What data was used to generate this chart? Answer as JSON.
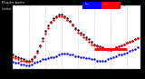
{
  "bg_color": "#000000",
  "plot_bg": "#ffffff",
  "ylim": [
    18,
    72
  ],
  "xlim": [
    0,
    47
  ],
  "ytick_vals": [
    20,
    30,
    40,
    50,
    60,
    70
  ],
  "ytick_labels": [
    "2",
    "3",
    "4",
    "5",
    "6",
    "7"
  ],
  "grid_x": [
    0,
    6,
    12,
    18,
    24,
    30,
    36,
    42
  ],
  "temp_color": "#ff0000",
  "dew_color": "#0000ff",
  "black_color": "#000000",
  "current_color": "#ff0000",
  "marker_size": 1.5,
  "temp_x": [
    0,
    1,
    2,
    3,
    4,
    5,
    6,
    7,
    8,
    9,
    10,
    11,
    12,
    13,
    14,
    15,
    16,
    17,
    18,
    19,
    20,
    21,
    22,
    23,
    24,
    25,
    26,
    27,
    28,
    29,
    30,
    31,
    32,
    33,
    34,
    35,
    36,
    37,
    38,
    39,
    40,
    41,
    42,
    43,
    44,
    45,
    46
  ],
  "temp_y": [
    28,
    27,
    26,
    25,
    25,
    24,
    24,
    25,
    28,
    32,
    37,
    42,
    48,
    53,
    57,
    60,
    62,
    63,
    63,
    62,
    60,
    58,
    55,
    52,
    49,
    47,
    45,
    43,
    41,
    39,
    38,
    37,
    36,
    35,
    35,
    34,
    34,
    35,
    36,
    37,
    38,
    39,
    40,
    41,
    42,
    43,
    44
  ],
  "black_x": [
    0,
    1,
    2,
    3,
    4,
    5,
    6,
    7,
    8,
    9,
    10,
    11,
    12,
    13,
    14,
    15,
    16,
    17,
    18,
    19,
    20,
    21,
    22,
    23,
    24,
    25,
    26,
    27,
    28,
    29,
    30,
    31,
    32,
    33,
    34,
    35,
    36,
    37,
    38,
    39,
    40,
    41,
    42,
    43,
    44,
    45,
    46
  ],
  "black_y": [
    30,
    29,
    28,
    27,
    26,
    25,
    25,
    26,
    29,
    33,
    38,
    44,
    50,
    55,
    58,
    61,
    63,
    64,
    64,
    63,
    61,
    59,
    56,
    53,
    51,
    49,
    47,
    45,
    43,
    41,
    39,
    38,
    37,
    36,
    35,
    35,
    34,
    35,
    36,
    37,
    38,
    39,
    40,
    41,
    42,
    43,
    44
  ],
  "dew_x": [
    0,
    1,
    2,
    3,
    4,
    5,
    6,
    7,
    8,
    9,
    10,
    11,
    12,
    13,
    14,
    15,
    16,
    17,
    18,
    19,
    20,
    21,
    22,
    23,
    24,
    25,
    26,
    27,
    28,
    29,
    30,
    31,
    32,
    33,
    34,
    35,
    36,
    37,
    38,
    39,
    40,
    41,
    42,
    43,
    44,
    45,
    46
  ],
  "dew_y": [
    24,
    23,
    23,
    22,
    22,
    21,
    21,
    22,
    23,
    24,
    25,
    26,
    26,
    27,
    28,
    28,
    29,
    30,
    31,
    31,
    31,
    30,
    30,
    29,
    29,
    28,
    28,
    27,
    27,
    26,
    26,
    25,
    25,
    25,
    25,
    26,
    27,
    28,
    29,
    30,
    30,
    31,
    32,
    33,
    34,
    35,
    36
  ],
  "horiz_line_x": [
    30,
    42
  ],
  "horiz_line_y": [
    35,
    35
  ],
  "xtick_pos": [
    0,
    2,
    4,
    6,
    8,
    10,
    12,
    14,
    16,
    18,
    20,
    22,
    24,
    26,
    28,
    30,
    32,
    34,
    36,
    38,
    40,
    42,
    44,
    46
  ],
  "xtick_labels": [
    "1",
    "3",
    "5",
    "7",
    "9",
    "11",
    "1",
    "3",
    "5",
    "7",
    "9",
    "11",
    "1",
    "3",
    "5",
    "7",
    "9",
    "11",
    "1",
    "3",
    "5",
    "7",
    "9",
    "11"
  ]
}
